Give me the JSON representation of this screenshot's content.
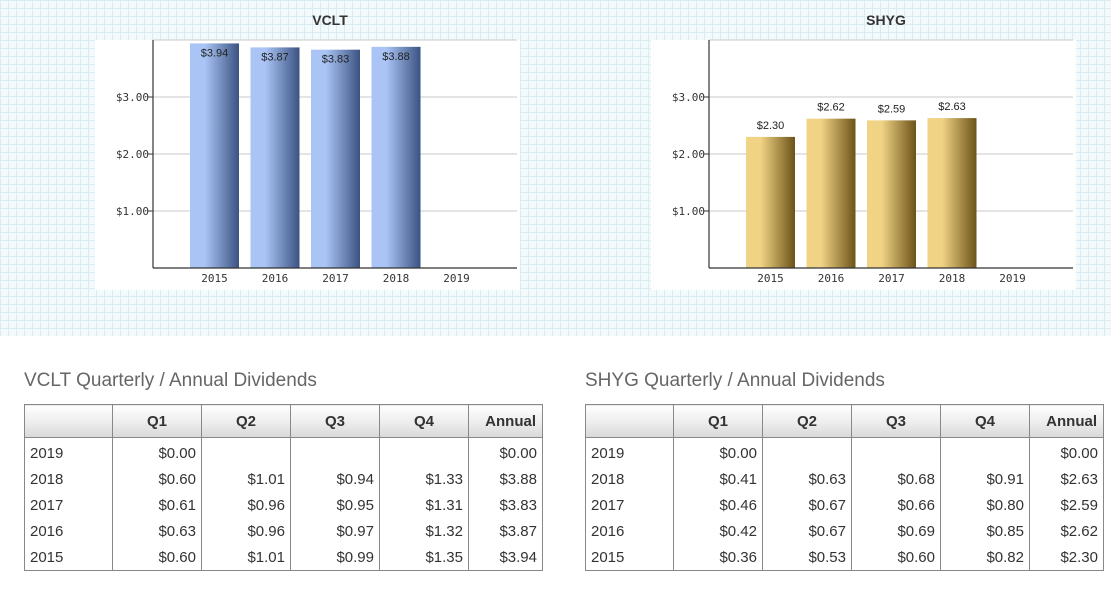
{
  "chart_data": [
    {
      "type": "bar",
      "title": "VCLT",
      "categories": [
        "2015",
        "2016",
        "2017",
        "2018",
        "2019"
      ],
      "values": [
        3.94,
        3.87,
        3.83,
        3.88,
        null
      ],
      "value_labels": [
        "$3.94",
        "$3.87",
        "$3.83",
        "$3.88",
        ""
      ],
      "yticks": [
        1,
        2,
        3
      ],
      "ytick_labels": [
        "$1.00",
        "$2.00",
        "$3.00"
      ],
      "ylim": [
        0,
        4
      ],
      "grid": true,
      "bar_color_light": "#a9c4f5",
      "bar_color_dark": "#3b5382"
    },
    {
      "type": "bar",
      "title": "SHYG",
      "categories": [
        "2015",
        "2016",
        "2017",
        "2018",
        "2019"
      ],
      "values": [
        2.3,
        2.62,
        2.59,
        2.63,
        null
      ],
      "value_labels": [
        "$2.30",
        "$2.62",
        "$2.59",
        "$2.63",
        ""
      ],
      "yticks": [
        1,
        2,
        3
      ],
      "ytick_labels": [
        "$1.00",
        "$2.00",
        "$3.00"
      ],
      "ylim": [
        0,
        4
      ],
      "grid": true,
      "bar_color_light": "#f0d384",
      "bar_color_dark": "#6b5218"
    }
  ],
  "tables": [
    {
      "title": "VCLT Quarterly / Annual Dividends",
      "headers": [
        "",
        "Q1",
        "Q2",
        "Q3",
        "Q4",
        "Annual"
      ],
      "rows": [
        [
          "2019",
          "$0.00",
          "",
          "",
          "",
          "$0.00"
        ],
        [
          "2018",
          "$0.60",
          "$1.01",
          "$0.94",
          "$1.33",
          "$3.88"
        ],
        [
          "2017",
          "$0.61",
          "$0.96",
          "$0.95",
          "$1.31",
          "$3.83"
        ],
        [
          "2016",
          "$0.63",
          "$0.96",
          "$0.97",
          "$1.32",
          "$3.87"
        ],
        [
          "2015",
          "$0.60",
          "$1.01",
          "$0.99",
          "$1.35",
          "$3.94"
        ]
      ]
    },
    {
      "title": "SHYG Quarterly / Annual Dividends",
      "headers": [
        "",
        "Q1",
        "Q2",
        "Q3",
        "Q4",
        "Annual"
      ],
      "rows": [
        [
          "2019",
          "$0.00",
          "",
          "",
          "",
          "$0.00"
        ],
        [
          "2018",
          "$0.41",
          "$0.63",
          "$0.68",
          "$0.91",
          "$2.63"
        ],
        [
          "2017",
          "$0.46",
          "$0.67",
          "$0.66",
          "$0.80",
          "$2.59"
        ],
        [
          "2016",
          "$0.42",
          "$0.67",
          "$0.69",
          "$0.85",
          "$2.62"
        ],
        [
          "2015",
          "$0.36",
          "$0.53",
          "$0.60",
          "$0.82",
          "$2.30"
        ]
      ]
    }
  ]
}
